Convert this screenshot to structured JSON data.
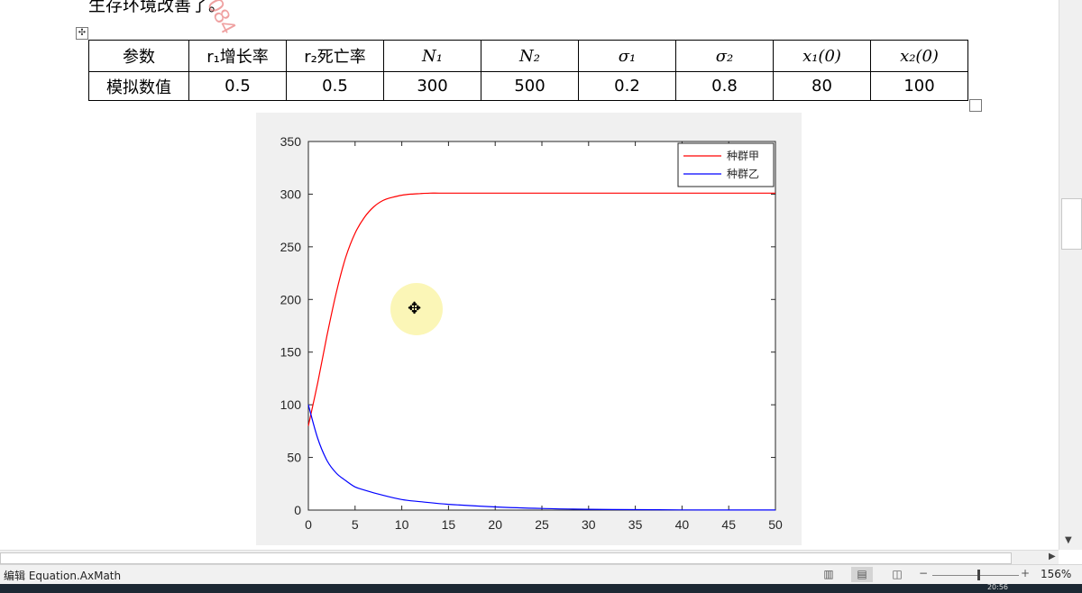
{
  "document": {
    "top_line": "生存环境改善了。",
    "watermark": "084",
    "table": {
      "header": [
        "参数",
        "r₁增长率",
        "r₂死亡率",
        "N₁",
        "N₂",
        "σ₁",
        "σ₂",
        "x₁(0)",
        "x₂(0)"
      ],
      "row_label": "模拟数值",
      "values": [
        "0.5",
        "0.5",
        "300",
        "500",
        "0.2",
        "0.8",
        "80",
        "100"
      ]
    }
  },
  "chart_data": {
    "type": "line",
    "xlim": [
      0,
      50
    ],
    "ylim": [
      0,
      350
    ],
    "xticks": [
      "0",
      "5",
      "10",
      "15",
      "20",
      "25",
      "30",
      "35",
      "40",
      "45",
      "50"
    ],
    "yticks": [
      "0",
      "50",
      "100",
      "150",
      "200",
      "250",
      "300",
      "350"
    ],
    "legend_position": "top-right",
    "series": [
      {
        "name": "种群甲",
        "color": "#ff0000",
        "x": [
          0,
          1,
          2,
          3,
          4,
          5,
          6,
          7,
          8,
          9,
          10,
          11,
          12,
          13,
          14,
          16,
          18,
          20,
          25,
          30,
          40,
          50
        ],
        "y": [
          80,
          121,
          166,
          207,
          240,
          263,
          278,
          288,
          294,
          297,
          299,
          300,
          300.5,
          301,
          301,
          301,
          301,
          301,
          301,
          301,
          301,
          301
        ]
      },
      {
        "name": "种群乙",
        "color": "#0000ff",
        "x": [
          0,
          1,
          2,
          3,
          4,
          5,
          6,
          8,
          10,
          12,
          15,
          20,
          25,
          30,
          35,
          40,
          45,
          50
        ],
        "y": [
          100,
          68,
          47,
          35,
          28,
          22,
          19,
          14,
          10,
          8,
          5.5,
          3,
          1.5,
          0.8,
          0.4,
          0.2,
          0.1,
          0.05
        ]
      }
    ]
  },
  "status_bar": {
    "mode_text": "编辑 Equation.AxMath",
    "zoom_minus": "−",
    "zoom_plus": "+",
    "zoom_percent": "156%",
    "zoom_level_fraction": 0.53
  },
  "taskbar": {
    "clock": "20:56"
  },
  "icons": [
    "table-move-icon",
    "read-mode-icon",
    "print-layout-icon",
    "web-layout-icon",
    "scroll-down-arrow-icon",
    "scroll-right-arrow-icon",
    "move-cursor-icon"
  ]
}
